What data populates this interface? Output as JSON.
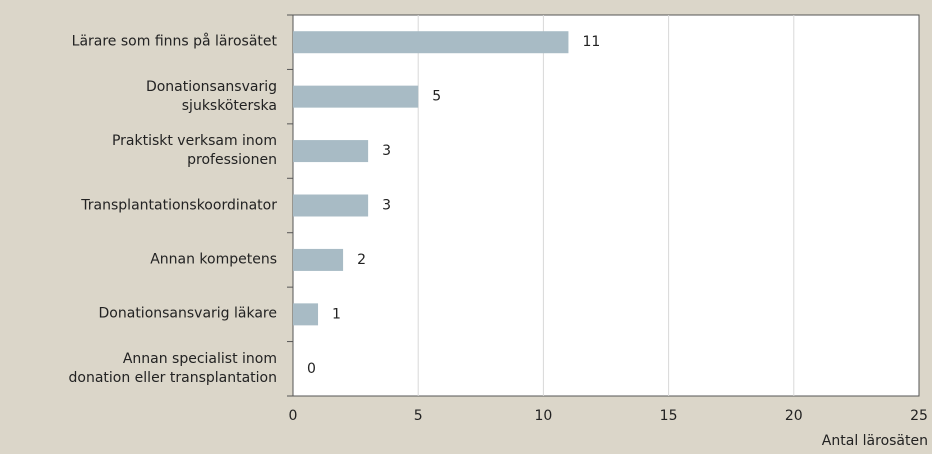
{
  "chart_data": {
    "type": "bar",
    "orientation": "horizontal",
    "categories": [
      "Lärare som finns på lärosätet",
      "Donationsansvarig\nsjuksköterska",
      "Praktiskt verksam inom\nprofessionen",
      "Transplantationskoordinator",
      "Annan kompetens",
      "Donationsansvarig läkare",
      "Annan specialist inom\ndonation eller transplantation"
    ],
    "values": [
      11,
      5,
      3,
      3,
      2,
      1,
      0
    ],
    "color": "#a8bbc5",
    "xlim": [
      0,
      25
    ],
    "xticks": [
      0,
      5,
      10,
      15,
      20,
      25
    ],
    "xlabel": "Antal lärosäten",
    "grid": true
  }
}
